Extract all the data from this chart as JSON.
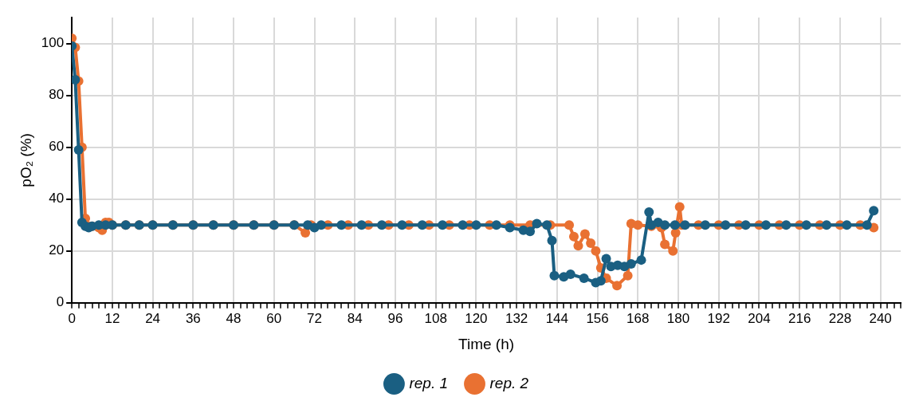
{
  "chart_data": {
    "type": "line",
    "xlabel": "Time (h)",
    "ylabel": "pO₂ (%)",
    "xlim": [
      0,
      246
    ],
    "ylim": [
      0,
      110
    ],
    "xticks": [
      0,
      {
        "value": 2,
        "label": null
      },
      {
        "value": 4,
        "label": null
      },
      {
        "value": 6,
        "label": null
      },
      {
        "value": 8,
        "label": null
      },
      {
        "value": 10,
        "label": null
      },
      12,
      {
        "value": 14,
        "label": null
      },
      {
        "value": 16,
        "label": null
      },
      {
        "value": 18,
        "label": null
      },
      {
        "value": 20,
        "label": null
      },
      {
        "value": 22,
        "label": null
      },
      24,
      {
        "value": 26,
        "label": null
      },
      {
        "value": 28,
        "label": null
      },
      {
        "value": 30,
        "label": null
      },
      {
        "value": 32,
        "label": null
      },
      {
        "value": 34,
        "label": null
      },
      36,
      {
        "value": 38,
        "label": null
      },
      {
        "value": 40,
        "label": null
      },
      {
        "value": 42,
        "label": null
      },
      {
        "value": 44,
        "label": null
      },
      {
        "value": 46,
        "label": null
      },
      48,
      {
        "value": 50,
        "label": null
      },
      {
        "value": 52,
        "label": null
      },
      {
        "value": 54,
        "label": null
      },
      {
        "value": 56,
        "label": null
      },
      {
        "value": 58,
        "label": null
      },
      60,
      {
        "value": 62,
        "label": null
      },
      {
        "value": 64,
        "label": null
      },
      {
        "value": 66,
        "label": null
      },
      {
        "value": 68,
        "label": null
      },
      {
        "value": 70,
        "label": null
      },
      72,
      {
        "value": 74,
        "label": null
      },
      {
        "value": 76,
        "label": null
      },
      {
        "value": 78,
        "label": null
      },
      {
        "value": 80,
        "label": null
      },
      {
        "value": 82,
        "label": null
      },
      84,
      {
        "value": 86,
        "label": null
      },
      {
        "value": 88,
        "label": null
      },
      {
        "value": 90,
        "label": null
      },
      {
        "value": 92,
        "label": null
      },
      {
        "value": 94,
        "label": null
      },
      96,
      {
        "value": 98,
        "label": null
      },
      {
        "value": 100,
        "label": null
      },
      {
        "value": 102,
        "label": null
      },
      {
        "value": 104,
        "label": null
      },
      {
        "value": 106,
        "label": null
      },
      108,
      {
        "value": 110,
        "label": null
      },
      {
        "value": 112,
        "label": null
      },
      {
        "value": 114,
        "label": null
      },
      {
        "value": 116,
        "label": null
      },
      {
        "value": 118,
        "label": null
      },
      120,
      {
        "value": 122,
        "label": null
      },
      {
        "value": 124,
        "label": null
      },
      {
        "value": 126,
        "label": null
      },
      {
        "value": 128,
        "label": null
      },
      {
        "value": 130,
        "label": null
      },
      132,
      {
        "value": 134,
        "label": null
      },
      {
        "value": 136,
        "label": null
      },
      {
        "value": 138,
        "label": null
      },
      {
        "value": 140,
        "label": null
      },
      {
        "value": 142,
        "label": null
      },
      144,
      {
        "value": 146,
        "label": null
      },
      {
        "value": 148,
        "label": null
      },
      {
        "value": 150,
        "label": null
      },
      {
        "value": 152,
        "label": null
      },
      {
        "value": 154,
        "label": null
      },
      156,
      {
        "value": 158,
        "label": null
      },
      {
        "value": 160,
        "label": null
      },
      {
        "value": 162,
        "label": null
      },
      {
        "value": 164,
        "label": null
      },
      {
        "value": 166,
        "label": null
      },
      168,
      {
        "value": 170,
        "label": null
      },
      {
        "value": 172,
        "label": null
      },
      {
        "value": 174,
        "label": null
      },
      {
        "value": 176,
        "label": null
      },
      {
        "value": 178,
        "label": null
      },
      180,
      {
        "value": 182,
        "label": null
      },
      {
        "value": 184,
        "label": null
      },
      {
        "value": 186,
        "label": null
      },
      {
        "value": 188,
        "label": null
      },
      {
        "value": 190,
        "label": null
      },
      192,
      {
        "value": 194,
        "label": null
      },
      {
        "value": 196,
        "label": null
      },
      {
        "value": 198,
        "label": null
      },
      {
        "value": 200,
        "label": null
      },
      {
        "value": 202,
        "label": null
      },
      204,
      {
        "value": 206,
        "label": null
      },
      {
        "value": 208,
        "label": null
      },
      {
        "value": 210,
        "label": null
      },
      {
        "value": 212,
        "label": null
      },
      {
        "value": 214,
        "label": null
      },
      216,
      {
        "value": 218,
        "label": null
      },
      {
        "value": 220,
        "label": null
      },
      {
        "value": 222,
        "label": null
      },
      {
        "value": 224,
        "label": null
      },
      {
        "value": 226,
        "label": null
      },
      228,
      {
        "value": 230,
        "label": null
      },
      {
        "value": 232,
        "label": null
      },
      {
        "value": 234,
        "label": null
      },
      {
        "value": 236,
        "label": null
      },
      {
        "value": 238,
        "label": null
      },
      240,
      {
        "value": 242,
        "label": null
      },
      {
        "value": 244,
        "label": null
      },
      {
        "value": 246,
        "label": null
      }
    ],
    "yticks": [
      0,
      20,
      40,
      60,
      80,
      100
    ],
    "grid": true,
    "legend": "bottom",
    "marker": "circle",
    "line_style": "solid",
    "series": [
      {
        "name": "rep. 1",
        "color": "#1a5f82",
        "x": [
          0,
          1,
          2,
          3,
          4,
          5,
          6,
          8,
          10,
          12,
          16,
          20,
          24,
          30,
          36,
          42,
          48,
          54,
          60,
          66,
          70,
          72,
          74,
          80,
          86,
          92,
          98,
          104,
          110,
          116,
          120,
          126,
          130,
          134,
          136,
          138,
          141,
          142.5,
          143.2,
          146,
          148,
          152,
          155.5,
          157,
          158.6,
          160,
          162,
          164,
          166,
          169,
          171.3,
          172,
          174,
          176,
          179,
          182,
          188,
          194,
          200,
          206,
          212,
          218,
          224,
          230,
          236,
          238
        ],
        "values": [
          99,
          86,
          59,
          31,
          29.5,
          29,
          29.5,
          30,
          30,
          30,
          30,
          30,
          30,
          30,
          30,
          30,
          30,
          30,
          30,
          30,
          30,
          29,
          30,
          30,
          30,
          30,
          30,
          30,
          30,
          30,
          30,
          30,
          29,
          28,
          27.5,
          30.5,
          30,
          24,
          10.5,
          10,
          11,
          9.5,
          7.8,
          8.5,
          17,
          14,
          14.5,
          14,
          15,
          16.5,
          35,
          30,
          31,
          30,
          30,
          30,
          30,
          30,
          30,
          30,
          30,
          30,
          30,
          30,
          30,
          35.5
        ]
      },
      {
        "name": "rep. 2",
        "color": "#e97132",
        "x": [
          0,
          1,
          2,
          3,
          4,
          5,
          6,
          8,
          9,
          10,
          11,
          12,
          16,
          20,
          24,
          30,
          36,
          42,
          48,
          54,
          60,
          66,
          69.3,
          71,
          76,
          82,
          88,
          94,
          100,
          106,
          112,
          118,
          124,
          130,
          136,
          142,
          147.6,
          149,
          150.3,
          152.3,
          154,
          155.5,
          157,
          158.6,
          161.8,
          165,
          166,
          168,
          172,
          175,
          176,
          178.4,
          179.2,
          180.4,
          181,
          186,
          192,
          198,
          204,
          210,
          216,
          222,
          228,
          234,
          238
        ],
        "values": [
          102,
          98.5,
          85.5,
          60,
          32.5,
          29.5,
          29.5,
          29,
          28,
          31,
          31,
          30,
          30,
          30,
          30,
          30,
          30,
          30,
          30,
          30,
          30,
          30,
          27,
          30,
          30,
          30,
          30,
          30,
          30,
          30,
          30,
          30,
          30,
          30,
          30,
          30,
          30,
          25.5,
          22,
          26.5,
          23,
          20,
          13.5,
          9.5,
          6.6,
          10.5,
          30.5,
          30,
          29.5,
          29,
          22.5,
          20,
          27,
          37,
          30,
          30,
          30,
          30,
          30,
          30,
          30,
          30,
          30,
          30,
          29
        ]
      }
    ]
  }
}
